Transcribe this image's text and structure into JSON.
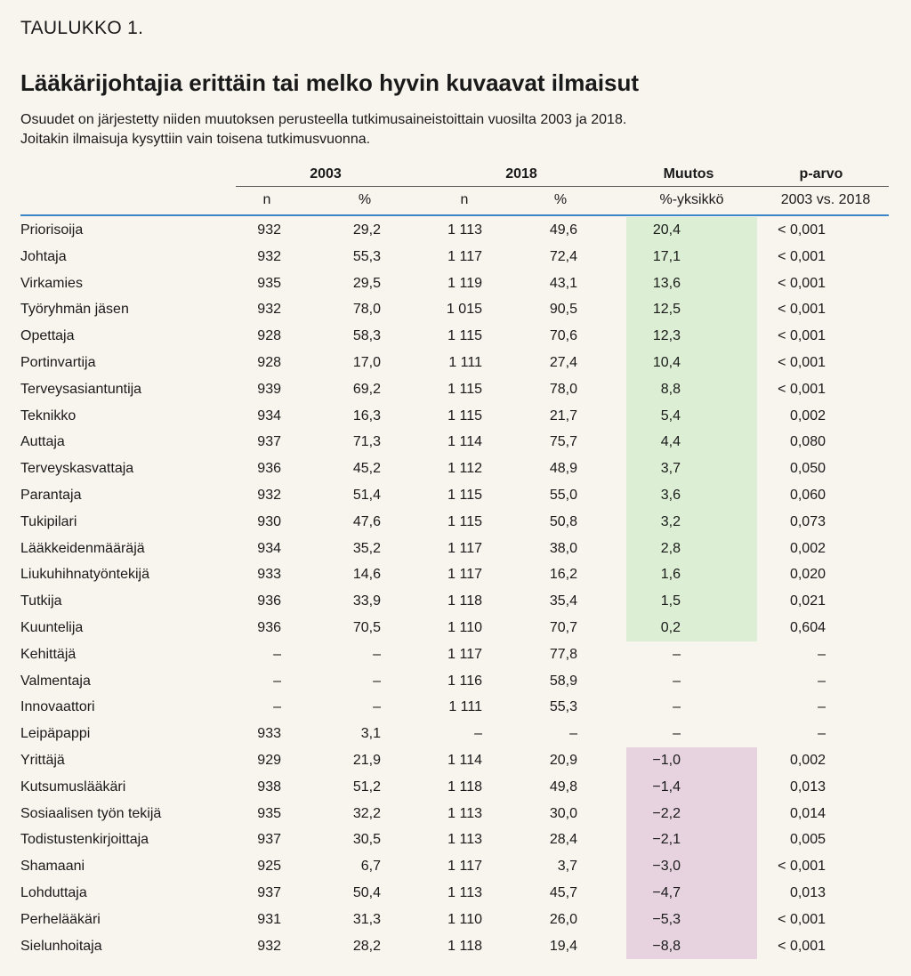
{
  "table_label": "TAULUKKO 1.",
  "title": "Lääkärijohtajia erittäin tai melko hyvin kuvaavat ilmaisut",
  "subtitle": [
    "Osuudet on järjestetty niiden muutoksen perusteella tutkimusaineistoittain vuosilta 2003 ja 2018.",
    "Joitakin ilmaisuja kysyttiin vain toisena tutkimusvuonna."
  ],
  "header": {
    "group_2003": "2003",
    "group_2018": "2018",
    "group_change": "Muutos",
    "group_p": "p-arvo",
    "sub_n_2003": "n",
    "sub_pct_2003": "%",
    "sub_n_2018": "n",
    "sub_pct_2018": "%",
    "sub_change": "%-yksikkö",
    "sub_p": "2003 vs. 2018"
  },
  "colors": {
    "background": "#f8f5ee",
    "positive_change": "#dcefd4",
    "negative_change": "#e6d3df",
    "header_rule": "#3a86c8"
  },
  "rows": [
    {
      "name": "Priorisoija",
      "n2003": "932",
      "pct2003": "29,2",
      "n2018": "1 113",
      "pct2018": "49,6",
      "change": "20,4",
      "p": "< 0,001"
    },
    {
      "name": "Johtaja",
      "n2003": "932",
      "pct2003": "55,3",
      "n2018": "1 117",
      "pct2018": "72,4",
      "change": "17,1",
      "p": "< 0,001"
    },
    {
      "name": "Virkamies",
      "n2003": "935",
      "pct2003": "29,5",
      "n2018": "1 119",
      "pct2018": "43,1",
      "change": "13,6",
      "p": "< 0,001"
    },
    {
      "name": "Työryhmän jäsen",
      "n2003": "932",
      "pct2003": "78,0",
      "n2018": "1 015",
      "pct2018": "90,5",
      "change": "12,5",
      "p": "<  0,001"
    },
    {
      "name": "Opettaja",
      "n2003": "928",
      "pct2003": "58,3",
      "n2018": "1 115",
      "pct2018": "70,6",
      "change": "12,3",
      "p": "< 0,001"
    },
    {
      "name": "Portinvartija",
      "n2003": "928",
      "pct2003": "17,0",
      "n2018": "1 111",
      "pct2018": "27,4",
      "change": "10,4",
      "p": "< 0,001"
    },
    {
      "name": "Terveysasiantuntija",
      "n2003": "939",
      "pct2003": "69,2",
      "n2018": "1 115",
      "pct2018": "78,0",
      "change": "8,8",
      "p": "< 0,001"
    },
    {
      "name": "Teknikko",
      "n2003": "934",
      "pct2003": "16,3",
      "n2018": "1 115",
      "pct2018": "21,7",
      "change": "5,4",
      "p": "0,002"
    },
    {
      "name": "Auttaja",
      "n2003": "937",
      "pct2003": "71,3",
      "n2018": "1 114",
      "pct2018": "75,7",
      "change": "4,4",
      "p": "0,080"
    },
    {
      "name": "Terveyskasvattaja",
      "n2003": "936",
      "pct2003": "45,2",
      "n2018": "1 112",
      "pct2018": "48,9",
      "change": "3,7",
      "p": "0,050"
    },
    {
      "name": "Parantaja",
      "n2003": "932",
      "pct2003": "51,4",
      "n2018": "1 115",
      "pct2018": "55,0",
      "change": "3,6",
      "p": "0,060"
    },
    {
      "name": "Tukipilari",
      "n2003": "930",
      "pct2003": "47,6",
      "n2018": "1 115",
      "pct2018": "50,8",
      "change": "3,2",
      "p": "0,073"
    },
    {
      "name": "Lääkkeidenmääräjä",
      "n2003": "934",
      "pct2003": "35,2",
      "n2018": "1 117",
      "pct2018": "38,0",
      "change": "2,8",
      "p": "0,002"
    },
    {
      "name": "Liukuhihnatyöntekijä",
      "n2003": "933",
      "pct2003": "14,6",
      "n2018": "1 117",
      "pct2018": "16,2",
      "change": "1,6",
      "p": "0,020"
    },
    {
      "name": "Tutkija",
      "n2003": "936",
      "pct2003": "33,9",
      "n2018": "1 118",
      "pct2018": "35,4",
      "change": "1,5",
      "p": "0,021"
    },
    {
      "name": "Kuuntelija",
      "n2003": "936",
      "pct2003": "70,5",
      "n2018": "1 110",
      "pct2018": "70,7",
      "change": "0,2",
      "p": "0,604"
    },
    {
      "name": "Kehittäjä",
      "n2003": "–",
      "pct2003": "–",
      "n2018": "1 117",
      "pct2018": "77,8",
      "change": "–",
      "p": "–"
    },
    {
      "name": "Valmentaja",
      "n2003": "–",
      "pct2003": "–",
      "n2018": "1 116",
      "pct2018": "58,9",
      "change": "–",
      "p": "–"
    },
    {
      "name": "Innovaattori",
      "n2003": "–",
      "pct2003": "–",
      "n2018": "1 111",
      "pct2018": "55,3",
      "change": "–",
      "p": "–"
    },
    {
      "name": "Leipäpappi",
      "n2003": "933",
      "pct2003": "3,1",
      "n2018": "–",
      "pct2018": "–",
      "change": "–",
      "p": "–"
    },
    {
      "name": "Yrittäjä",
      "n2003": "929",
      "pct2003": "21,9",
      "n2018": "1 114",
      "pct2018": "20,9",
      "change": "−1,0",
      "p": "0,002"
    },
    {
      "name": "Kutsumuslääkäri",
      "n2003": "938",
      "pct2003": "51,2",
      "n2018": "1 118",
      "pct2018": "49,8",
      "change": "−1,4",
      "p": "0,013"
    },
    {
      "name": "Sosiaalisen työn tekijä",
      "n2003": "935",
      "pct2003": "32,2",
      "n2018": "1 113",
      "pct2018": "30,0",
      "change": "−2,2",
      "p": "0,014"
    },
    {
      "name": "Todistustenkirjoittaja",
      "n2003": "937",
      "pct2003": "30,5",
      "n2018": "1 113",
      "pct2018": "28,4",
      "change": "−2,1",
      "p": "0,005"
    },
    {
      "name": "Shamaani",
      "n2003": "925",
      "pct2003": "6,7",
      "n2018": "1 117",
      "pct2018": "3,7",
      "change": "−3,0",
      "p": "< 0,001"
    },
    {
      "name": "Lohduttaja",
      "n2003": "937",
      "pct2003": "50,4",
      "n2018": "1 113",
      "pct2018": "45,7",
      "change": "−4,7",
      "p": "0,013"
    },
    {
      "name": "Perhelääkäri",
      "n2003": "931",
      "pct2003": "31,3",
      "n2018": "1 110",
      "pct2018": "26,0",
      "change": "−5,3",
      "p": "< 0,001"
    },
    {
      "name": "Sielunhoitaja",
      "n2003": "932",
      "pct2003": "28,2",
      "n2018": "1 118",
      "pct2018": "19,4",
      "change": "−8,8",
      "p": "< 0,001"
    }
  ]
}
